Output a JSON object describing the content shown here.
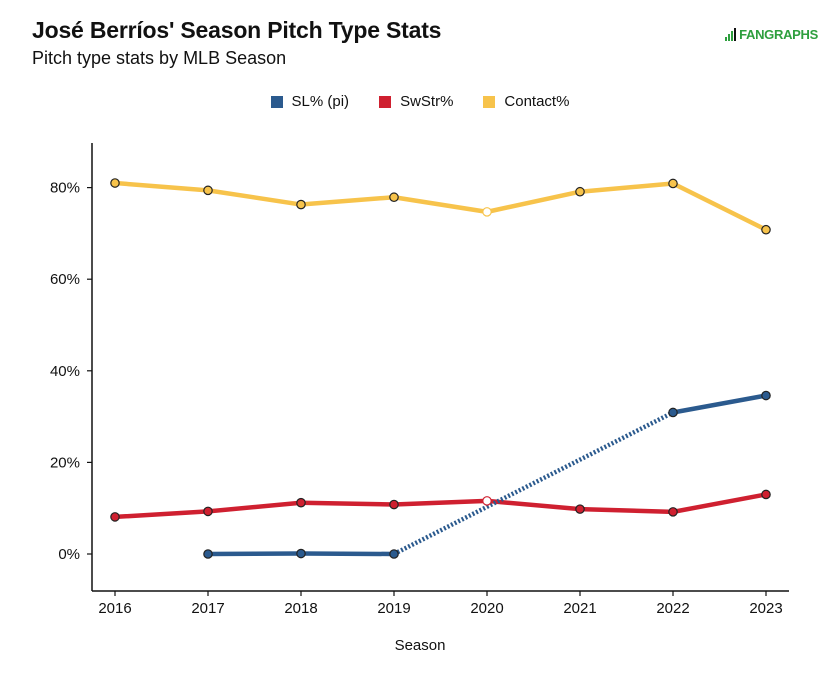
{
  "header": {
    "title": "José Berríos' Season Pitch Type Stats",
    "subtitle": "Pitch type stats by MLB Season",
    "logo_text": "FANGRAPHS"
  },
  "colors": {
    "sl": "#2b5a8e",
    "swstr": "#cf2030",
    "contact": "#f7c34b"
  },
  "chart_data": {
    "type": "line",
    "xlabel": "Season",
    "ylabel": "",
    "x": [
      2016,
      2017,
      2018,
      2019,
      2020,
      2021,
      2022,
      2023
    ],
    "ylim": [
      -8,
      90
    ],
    "yticks": [
      0,
      20,
      40,
      60,
      80
    ],
    "ytick_labels": [
      "0%",
      "20%",
      "40%",
      "60%",
      "80%"
    ],
    "legend_position": "top",
    "grid": false,
    "series": [
      {
        "name": "SL% (pi)",
        "color": "#2b5a8e",
        "values": [
          null,
          0.0,
          0.1,
          0.0,
          null,
          null,
          30.9,
          34.6
        ],
        "dotted_gap": [
          2019,
          2022
        ]
      },
      {
        "name": "SwStr%",
        "color": "#cf2030",
        "values": [
          8.1,
          9.3,
          11.2,
          10.8,
          11.6,
          9.8,
          9.2,
          13.0
        ]
      },
      {
        "name": "Contact%",
        "color": "#f7c34b",
        "values": [
          81.0,
          79.4,
          76.3,
          77.9,
          74.7,
          79.1,
          80.9,
          70.8
        ]
      }
    ]
  }
}
